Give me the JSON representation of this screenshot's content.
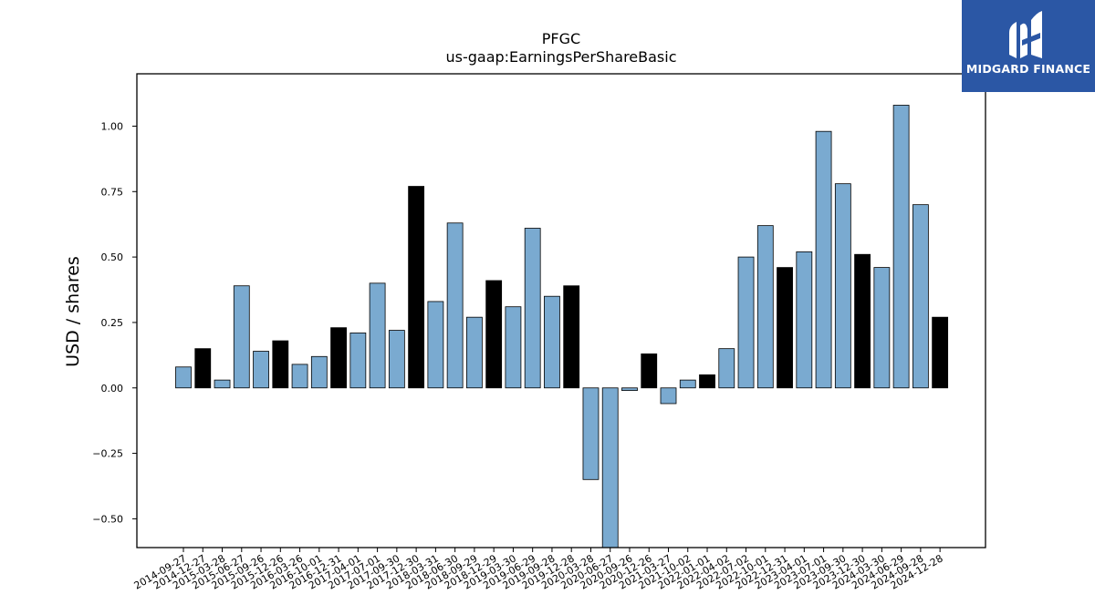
{
  "brand": {
    "name": "MIDGARD FINANCE",
    "bg_color": "#2b57a5"
  },
  "colors": {
    "bar_default": "#7aaad0",
    "bar_q4": "#000000",
    "edge": "#000000"
  },
  "chart_data": {
    "type": "bar",
    "title": "PFGC",
    "subtitle": "us-gaap:EarningsPerShareBasic",
    "xlabel": "",
    "ylabel": "USD / shares",
    "ylim": [
      -0.61,
      1.2
    ],
    "yticks": [
      -0.5,
      -0.25,
      0.0,
      0.25,
      0.5,
      0.75,
      1.0
    ],
    "ytick_labels": [
      "−0.50",
      "−0.25",
      "0.00",
      "0.25",
      "0.50",
      "0.75",
      "1.00"
    ],
    "grid": false,
    "categories": [
      "2014-09-27",
      "2014-12-27",
      "2015-03-28",
      "2015-06-27",
      "2015-09-26",
      "2015-12-26",
      "2016-03-26",
      "2016-10-01",
      "2016-12-31",
      "2017-04-01",
      "2017-07-01",
      "2017-09-30",
      "2017-12-30",
      "2018-03-31",
      "2018-06-30",
      "2018-09-29",
      "2018-12-29",
      "2019-03-30",
      "2019-06-29",
      "2019-09-28",
      "2019-12-28",
      "2020-03-28",
      "2020-06-27",
      "2020-09-26",
      "2020-12-26",
      "2021-03-27",
      "2021-10-02",
      "2022-01-01",
      "2022-04-02",
      "2022-07-02",
      "2022-10-01",
      "2022-12-31",
      "2023-04-01",
      "2023-07-01",
      "2023-09-30",
      "2023-12-30",
      "2024-03-30",
      "2024-06-29",
      "2024-09-28",
      "2024-12-28"
    ],
    "values": [
      0.08,
      0.15,
      0.03,
      0.39,
      0.14,
      0.18,
      0.09,
      0.12,
      0.23,
      0.21,
      0.4,
      0.22,
      0.77,
      0.33,
      0.63,
      0.27,
      0.41,
      0.31,
      0.61,
      0.35,
      0.39,
      -0.35,
      -0.7,
      -0.01,
      0.13,
      -0.06,
      0.03,
      0.05,
      0.15,
      0.5,
      0.62,
      0.46,
      0.52,
      0.98,
      0.78,
      0.51,
      0.46,
      1.08,
      0.7,
      0.27
    ],
    "highlight": [
      false,
      true,
      false,
      false,
      false,
      true,
      false,
      false,
      true,
      false,
      false,
      false,
      true,
      false,
      false,
      false,
      true,
      false,
      false,
      false,
      true,
      false,
      false,
      false,
      true,
      false,
      false,
      true,
      false,
      false,
      false,
      true,
      false,
      false,
      false,
      true,
      false,
      false,
      false,
      true
    ]
  }
}
